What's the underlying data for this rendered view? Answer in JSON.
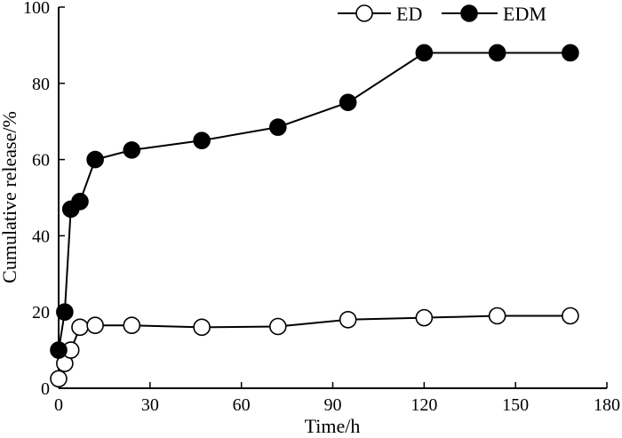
{
  "chart_data": {
    "type": "line",
    "title": "",
    "xlabel": "Time/h",
    "ylabel": "Cumulative release/%",
    "xlim": [
      0,
      180
    ],
    "ylim": [
      0,
      100
    ],
    "xticks": [
      0,
      30,
      60,
      90,
      120,
      150,
      180
    ],
    "yticks": [
      0,
      20,
      40,
      60,
      80,
      100
    ],
    "grid": false,
    "legend_position": "top-right",
    "series": [
      {
        "name": "ED",
        "marker": "open-circle",
        "color": "#000000",
        "x": [
          0,
          2,
          4,
          7,
          12,
          24,
          47,
          72,
          95,
          120,
          144,
          168
        ],
        "y": [
          2.5,
          6.5,
          10,
          16,
          16.5,
          16.5,
          16,
          16.2,
          18,
          18.5,
          19,
          19
        ]
      },
      {
        "name": "EDM",
        "marker": "filled-circle",
        "color": "#000000",
        "x": [
          0,
          2,
          4,
          7,
          12,
          24,
          47,
          72,
          95,
          120,
          144,
          168
        ],
        "y": [
          10,
          20,
          47,
          49,
          60,
          62.5,
          65,
          68.5,
          75,
          88,
          88,
          88
        ]
      }
    ]
  }
}
